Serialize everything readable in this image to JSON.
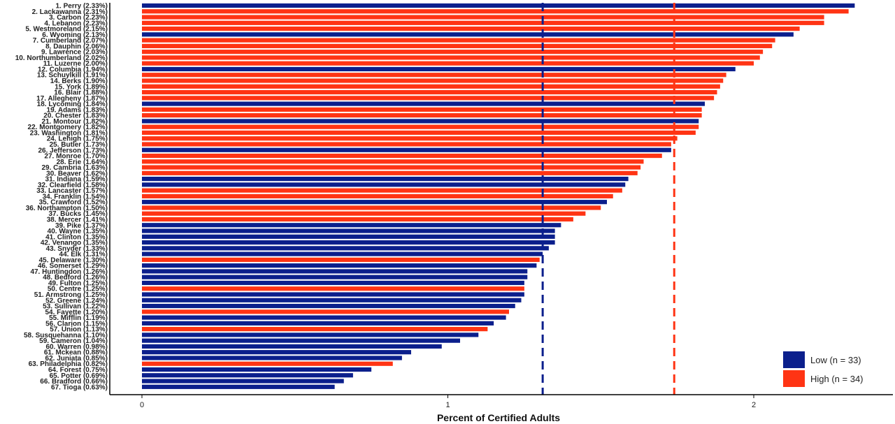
{
  "chart_data": {
    "type": "bar",
    "orientation": "horizontal",
    "title": "",
    "xlabel": "Percent of Certified Adults",
    "ylabel": "",
    "xlim": [
      0,
      2.4
    ],
    "x_ticks": [
      0,
      1,
      2
    ],
    "grid": false,
    "legend_position": "bottom-right",
    "colors": {
      "Low": "#0b1f8c",
      "High": "#ff3414"
    },
    "reference_lines": [
      {
        "value": 1.31,
        "color": "#0b1f8c",
        "style": "dashed"
      },
      {
        "value": 1.74,
        "color": "#ff3414",
        "style": "dashed"
      }
    ],
    "series": [
      {
        "name": "Low (n = 33)",
        "key": "Low"
      },
      {
        "name": "High (n = 34)",
        "key": "High"
      }
    ],
    "categories": [
      "1. Perry (2.33%)",
      "2. Lackawanna (2.31%)",
      "3. Carbon (2.23%)",
      "4. Lebanon (2.23%)",
      "5. Westmoreland (2.15%)",
      "6. Wyoming (2.13%)",
      "7. Cumberland (2.07%)",
      "8. Dauphin (2.06%)",
      "9. Lawrence (2.03%)",
      "10. Northumberland (2.02%)",
      "11. Luzerne (2.00%)",
      "12. Columbia (1.94%)",
      "13. Schuylkill (1.91%)",
      "14. Berks (1.90%)",
      "15. York (1.89%)",
      "16. Blair (1.88%)",
      "17. Allegheny (1.87%)",
      "18. Lycoming (1.84%)",
      "19. Adams (1.83%)",
      "20. Chester (1.83%)",
      "21. Montour (1.82%)",
      "22. Montgomery (1.82%)",
      "23. Washington (1.81%)",
      "24. Lehigh (1.75%)",
      "25. Butler (1.73%)",
      "26. Jefferson (1.73%)",
      "27. Monroe (1.70%)",
      "28. Erie (1.64%)",
      "29. Cambria (1.63%)",
      "30. Beaver (1.62%)",
      "31. Indiana (1.59%)",
      "32. Clearfield (1.58%)",
      "33. Lancaster (1.57%)",
      "34. Franklin (1.54%)",
      "35. Crawford (1.52%)",
      "36. Northampton (1.50%)",
      "37. Bucks (1.45%)",
      "38. Mercer (1.41%)",
      "39. Pike (1.37%)",
      "40. Wayne (1.35%)",
      "41. Clinton (1.35%)",
      "42. Venango (1.35%)",
      "43. Snyder (1.33%)",
      "44. Elk (1.31%)",
      "45. Delaware (1.30%)",
      "46. Somerset (1.29%)",
      "47. Huntingdon (1.26%)",
      "48. Bedford (1.26%)",
      "49. Fulton (1.25%)",
      "50. Centre (1.25%)",
      "51. Armstrong (1.25%)",
      "52. Greene (1.24%)",
      "53. Sullivan (1.22%)",
      "54. Fayette (1.20%)",
      "55. Mifflin (1.19%)",
      "56. Clarion (1.15%)",
      "57. Union (1.13%)",
      "58. Susquehanna (1.10%)",
      "59. Cameron (1.04%)",
      "60. Warren (0.98%)",
      "61. Mckean (0.88%)",
      "62. Juniata (0.85%)",
      "63. Philadelphia (0.82%)",
      "64. Forest (0.75%)",
      "65. Potter (0.69%)",
      "66. Bradford (0.66%)",
      "67. Tioga (0.63%)"
    ],
    "values": [
      2.33,
      2.31,
      2.23,
      2.23,
      2.15,
      2.13,
      2.07,
      2.06,
      2.03,
      2.02,
      2.0,
      1.94,
      1.91,
      1.9,
      1.89,
      1.88,
      1.87,
      1.84,
      1.83,
      1.83,
      1.82,
      1.82,
      1.81,
      1.75,
      1.73,
      1.73,
      1.7,
      1.64,
      1.63,
      1.62,
      1.59,
      1.58,
      1.57,
      1.54,
      1.52,
      1.5,
      1.45,
      1.41,
      1.37,
      1.35,
      1.35,
      1.35,
      1.33,
      1.31,
      1.3,
      1.29,
      1.26,
      1.26,
      1.25,
      1.25,
      1.25,
      1.24,
      1.22,
      1.2,
      1.19,
      1.15,
      1.13,
      1.1,
      1.04,
      0.98,
      0.88,
      0.85,
      0.82,
      0.75,
      0.69,
      0.66,
      0.63
    ],
    "groups": [
      "Low",
      "High",
      "High",
      "High",
      "High",
      "Low",
      "High",
      "High",
      "High",
      "High",
      "High",
      "Low",
      "High",
      "High",
      "High",
      "High",
      "High",
      "Low",
      "High",
      "High",
      "Low",
      "High",
      "High",
      "High",
      "High",
      "Low",
      "High",
      "High",
      "High",
      "High",
      "Low",
      "Low",
      "High",
      "High",
      "Low",
      "High",
      "High",
      "High",
      "Low",
      "Low",
      "Low",
      "Low",
      "Low",
      "Low",
      "High",
      "Low",
      "Low",
      "Low",
      "Low",
      "High",
      "Low",
      "Low",
      "Low",
      "High",
      "Low",
      "Low",
      "High",
      "Low",
      "Low",
      "Low",
      "Low",
      "Low",
      "High",
      "Low",
      "Low",
      "Low",
      "Low"
    ]
  }
}
